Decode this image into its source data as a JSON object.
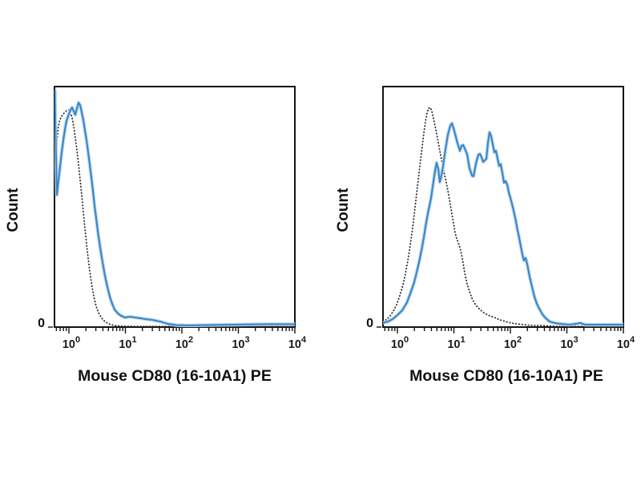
{
  "figure": {
    "background": "#ffffff",
    "border_color": "#141414",
    "tick_color": "#141414",
    "tick_label_color": "#1a1a1a"
  },
  "chart_data": [
    {
      "type": "line",
      "panel": "left",
      "title": "",
      "xlabel": "Mouse CD80 (16-10A1) PE",
      "ylabel": "Count",
      "xscale": "log",
      "xlim": [
        0.556,
        10000
      ],
      "ylim": [
        0,
        100
      ],
      "xticks": [
        1,
        10,
        100,
        1000,
        10000
      ],
      "xtick_labels": [
        "10⁰",
        "10¹",
        "10²",
        "10³",
        "10⁴"
      ],
      "ytick_labels": [
        "0"
      ],
      "grid": false,
      "legend": null,
      "series": [
        {
          "name": "dotted-black-control",
          "style": "dotted",
          "color": "#2b2b2b",
          "points": [
            [
              0.556,
              54.3
            ],
            [
              0.583,
              67.7
            ],
            [
              0.613,
              76.7
            ],
            [
              0.644,
              82.7
            ],
            [
              0.687,
              86
            ],
            [
              0.745,
              87.7
            ],
            [
              0.822,
              89
            ],
            [
              0.906,
              90
            ],
            [
              1.0,
              90.3
            ],
            [
              1.07,
              89.3
            ],
            [
              1.14,
              87
            ],
            [
              1.22,
              83.3
            ],
            [
              1.3,
              78.7
            ],
            [
              1.39,
              73.3
            ],
            [
              1.48,
              67.7
            ],
            [
              1.58,
              61.3
            ],
            [
              1.69,
              54.7
            ],
            [
              1.8,
              48
            ],
            [
              1.92,
              41.3
            ],
            [
              2.05,
              34.7
            ],
            [
              2.19,
              28.7
            ],
            [
              2.34,
              23.3
            ],
            [
              2.5,
              18.7
            ],
            [
              2.67,
              14.7
            ],
            [
              2.84,
              11.3
            ],
            [
              3.13,
              7.7
            ],
            [
              3.46,
              5.3
            ],
            [
              3.82,
              3.7
            ],
            [
              4.35,
              2.3
            ],
            [
              5.12,
              1.3
            ],
            [
              6.23,
              0.7
            ],
            [
              8.09,
              0.4
            ],
            [
              13.2,
              0.3
            ],
            [
              25.4,
              0.3
            ],
            [
              67.6,
              0.3
            ],
            [
              294,
              0.3
            ],
            [
              2080,
              0.3
            ],
            [
              10000,
              0.3
            ]
          ]
        },
        {
          "name": "solid-blue-stained",
          "style": "solid",
          "color": "#3b86c8",
          "halo": "#bcd8f0",
          "points": [
            [
              0.565,
              98.7
            ],
            [
              0.574,
              86
            ],
            [
              0.593,
              69.3
            ],
            [
              0.613,
              55
            ],
            [
              0.654,
              61
            ],
            [
              0.698,
              66.7
            ],
            [
              0.745,
              72.7
            ],
            [
              0.796,
              77.7
            ],
            [
              0.849,
              82
            ],
            [
              0.906,
              85.7
            ],
            [
              0.968,
              87.7
            ],
            [
              1.07,
              90.3
            ],
            [
              1.14,
              91.3
            ],
            [
              1.22,
              89.7
            ],
            [
              1.3,
              88.3
            ],
            [
              1.39,
              91
            ],
            [
              1.48,
              93.3
            ],
            [
              1.58,
              92.3
            ],
            [
              1.69,
              89.3
            ],
            [
              1.8,
              86
            ],
            [
              1.92,
              82
            ],
            [
              2.05,
              77.7
            ],
            [
              2.19,
              72.7
            ],
            [
              2.34,
              67.7
            ],
            [
              2.5,
              62.3
            ],
            [
              2.67,
              56.7
            ],
            [
              2.84,
              50.7
            ],
            [
              3.04,
              45.3
            ],
            [
              3.24,
              40
            ],
            [
              3.57,
              33.3
            ],
            [
              3.94,
              27
            ],
            [
              4.35,
              21.3
            ],
            [
              4.8,
              16.7
            ],
            [
              5.29,
              12.7
            ],
            [
              5.83,
              9.7
            ],
            [
              6.43,
              7.3
            ],
            [
              7.33,
              5.7
            ],
            [
              8.35,
              4.7
            ],
            [
              9.84,
              4
            ],
            [
              12,
              4.3
            ],
            [
              14.6,
              4
            ],
            [
              18.3,
              3.7
            ],
            [
              23,
              3.3
            ],
            [
              29.9,
              3
            ],
            [
              41.4,
              2.3
            ],
            [
              57.4,
              1.3
            ],
            [
              79.6,
              0.8
            ],
            [
              130,
              0.7
            ],
            [
              250,
              0.8
            ],
            [
              780,
              1
            ],
            [
              2900,
              1.2
            ],
            [
              10000,
              1.2
            ]
          ]
        }
      ]
    },
    {
      "type": "line",
      "panel": "right",
      "title": "",
      "xlabel": "Mouse CD80 (16-10A1) PE",
      "ylabel": "Count",
      "xscale": "log",
      "xlim": [
        0.556,
        10000
      ],
      "ylim": [
        0,
        100
      ],
      "xticks": [
        1,
        10,
        100,
        1000,
        10000
      ],
      "xtick_labels": [
        "10⁰",
        "10¹",
        "10²",
        "10³",
        "10⁴"
      ],
      "ytick_labels": [
        "0"
      ],
      "grid": false,
      "legend": null,
      "series": [
        {
          "name": "dotted-black-control",
          "style": "dotted",
          "color": "#2b2b2b",
          "points": [
            [
              0.556,
              2.3
            ],
            [
              0.654,
              3.3
            ],
            [
              0.745,
              4.7
            ],
            [
              0.849,
              6.7
            ],
            [
              0.968,
              9.3
            ],
            [
              1.1,
              13
            ],
            [
              1.26,
              17.7
            ],
            [
              1.39,
              22.3
            ],
            [
              1.53,
              27.7
            ],
            [
              1.69,
              34
            ],
            [
              1.86,
              41.3
            ],
            [
              2.05,
              49.7
            ],
            [
              2.26,
              58.3
            ],
            [
              2.5,
              67
            ],
            [
              2.75,
              75
            ],
            [
              2.94,
              80.7
            ],
            [
              3.13,
              85.3
            ],
            [
              3.35,
              89
            ],
            [
              3.57,
              91
            ],
            [
              3.82,
              91.3
            ],
            [
              4.07,
              89.7
            ],
            [
              4.35,
              86.7
            ],
            [
              4.8,
              82
            ],
            [
              5.29,
              76.7
            ],
            [
              5.83,
              71.3
            ],
            [
              6.44,
              66.3
            ],
            [
              7.1,
              61.7
            ],
            [
              7.83,
              56.7
            ],
            [
              8.63,
              51
            ],
            [
              9.52,
              45
            ],
            [
              10.5,
              39.3
            ],
            [
              11.2,
              36.7
            ],
            [
              12,
              35
            ],
            [
              12.8,
              33
            ],
            [
              14.1,
              28.7
            ],
            [
              15.5,
              22.7
            ],
            [
              17.1,
              18
            ],
            [
              18.9,
              14.7
            ],
            [
              20.9,
              12
            ],
            [
              23,
              10
            ],
            [
              26.2,
              8.3
            ],
            [
              29.9,
              7
            ],
            [
              35.2,
              5.7
            ],
            [
              42.8,
              4.7
            ],
            [
              52,
              4
            ],
            [
              65.4,
              3
            ],
            [
              82.2,
              2.3
            ],
            [
              103,
              1.7
            ],
            [
              134,
              1.3
            ],
            [
              174,
              1
            ],
            [
              226,
              0.7
            ],
            [
              346,
              0.7
            ],
            [
              665,
              0.3
            ],
            [
              1500,
              0.3
            ],
            [
              4010,
              0.3
            ],
            [
              10000,
              0.3
            ]
          ]
        },
        {
          "name": "solid-blue-stained",
          "style": "solid",
          "color": "#3b86c8",
          "halo": "#bcd8f0",
          "points": [
            [
              0.556,
              1.7
            ],
            [
              0.676,
              2.3
            ],
            [
              0.822,
              3.3
            ],
            [
              1,
              5
            ],
            [
              1.22,
              7
            ],
            [
              1.48,
              10.3
            ],
            [
              1.74,
              14.7
            ],
            [
              1.99,
              18.7
            ],
            [
              2.19,
              22.7
            ],
            [
              2.42,
              27
            ],
            [
              2.66,
              31.7
            ],
            [
              2.94,
              37.3
            ],
            [
              3.24,
              43.7
            ],
            [
              3.57,
              48.7
            ],
            [
              3.94,
              53.7
            ],
            [
              4.21,
              58.3
            ],
            [
              4.64,
              65
            ],
            [
              4.95,
              68.3
            ],
            [
              5.29,
              65.7
            ],
            [
              5.64,
              60.3
            ],
            [
              6.03,
              63
            ],
            [
              6.44,
              67
            ],
            [
              7.1,
              74
            ],
            [
              7.83,
              80
            ],
            [
              8.63,
              83.7
            ],
            [
              9.22,
              84.7
            ],
            [
              9.84,
              82.7
            ],
            [
              10.5,
              80.3
            ],
            [
              11.2,
              77.7
            ],
            [
              12,
              75.3
            ],
            [
              12.8,
              73.3
            ],
            [
              13.6,
              75.3
            ],
            [
              14.6,
              75.7
            ],
            [
              15.5,
              74.3
            ],
            [
              17.1,
              72
            ],
            [
              18.9,
              66
            ],
            [
              20.9,
              63
            ],
            [
              22.3,
              62.7
            ],
            [
              24.6,
              68
            ],
            [
              27.1,
              71.7
            ],
            [
              28.9,
              72
            ],
            [
              30.9,
              70.7
            ],
            [
              33,
              68.7
            ],
            [
              35.2,
              69.3
            ],
            [
              37.5,
              70
            ],
            [
              40.1,
              76.7
            ],
            [
              42.8,
              81
            ],
            [
              45.7,
              79.3
            ],
            [
              48.7,
              76
            ],
            [
              52,
              72.7
            ],
            [
              55.5,
              73.3
            ],
            [
              59.3,
              70
            ],
            [
              63.3,
              67
            ],
            [
              67.6,
              67.7
            ],
            [
              72.1,
              64
            ],
            [
              77,
              60
            ],
            [
              82.2,
              60.7
            ],
            [
              87.8,
              59.3
            ],
            [
              93.7,
              56
            ],
            [
              100,
              53.7
            ],
            [
              110,
              50
            ],
            [
              122,
              45.3
            ],
            [
              134,
              40.3
            ],
            [
              148,
              35.3
            ],
            [
              163,
              30.3
            ],
            [
              174,
              27.7
            ],
            [
              186,
              28.7
            ],
            [
              199,
              26
            ],
            [
              219,
              21
            ],
            [
              242,
              16.7
            ],
            [
              266,
              12.7
            ],
            [
              294,
              9.7
            ],
            [
              324,
              7.7
            ],
            [
              369,
              5.3
            ],
            [
              421,
              3.7
            ],
            [
              496,
              2.3
            ],
            [
              603,
              1.7
            ],
            [
              783,
              1.3
            ],
            [
              1090,
              1
            ],
            [
              1410,
              1.3
            ],
            [
              1720,
              1.7
            ],
            [
              2090,
              1
            ],
            [
              3400,
              1
            ],
            [
              10000,
              1
            ]
          ]
        }
      ]
    }
  ]
}
